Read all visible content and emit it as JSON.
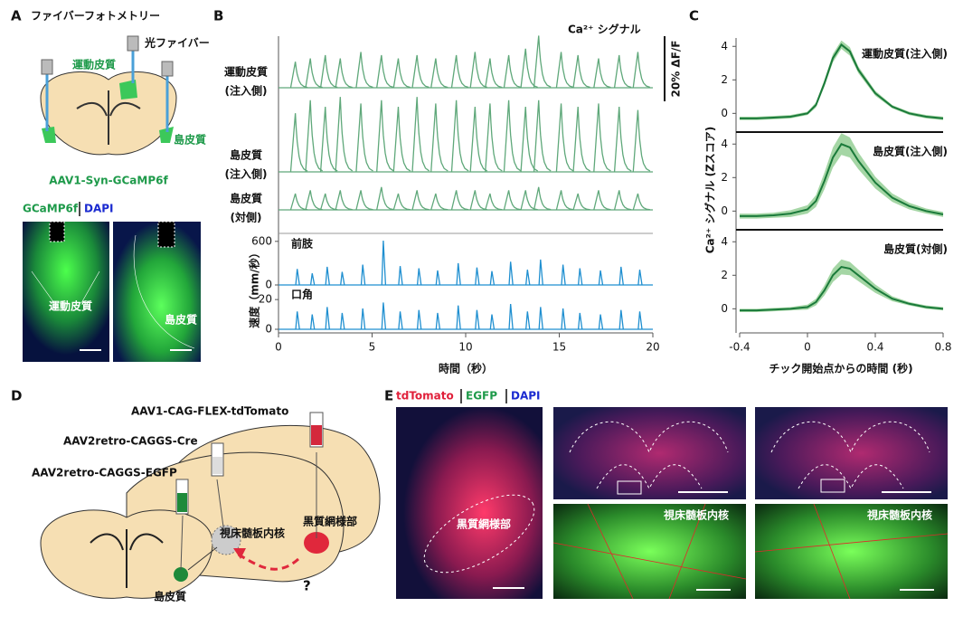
{
  "panels": {
    "A": {
      "label": "A",
      "title": "ファイバーフォトメトリー",
      "fiber": "光ファイバー",
      "motor": "運動皮質",
      "insula": "島皮質",
      "virus": "AAV1-Syn-GCaMP6f",
      "stain_green": "GCaMP6f",
      "stain_blue": "DAPI",
      "image_labels": [
        "運動皮質",
        "島皮質"
      ]
    },
    "B": {
      "label": "B"
    },
    "C": {
      "label": "C"
    },
    "D": {
      "label": "D",
      "viruses": [
        "AAV1-CAG-FLEX-tdTomato",
        "AAV2retro-CAGGS-Cre",
        "AAV2retro-CAGGS-EGFP"
      ],
      "regions": [
        "視床髄板内核",
        "黒質網様部",
        "島皮質"
      ],
      "question": "?"
    },
    "E": {
      "label": "E",
      "stains": [
        "tdTomato",
        "EGFP",
        "DAPI"
      ],
      "image_labels": [
        "黒質網様部",
        "視床髄板内核",
        "視床髄板内核"
      ]
    }
  },
  "chart_data": [
    {
      "type": "traces",
      "annotation": "Ca²⁺ シグナル",
      "scale_bar": {
        "value": 20,
        "label": "20% ΔF/F"
      },
      "xlabel": "時間（秒）",
      "xlim": [
        0,
        20
      ],
      "xticks": [
        0,
        5,
        10,
        15,
        20
      ],
      "ylabel": "速度（mm/秒）",
      "series": [
        {
          "label_lines": [
            "運動皮質",
            "(注入側)"
          ],
          "color": "#5fa87a",
          "x": [
            0.9,
            1.7,
            2.5,
            3.3,
            4.4,
            5.5,
            6.4,
            7.4,
            8.4,
            9.5,
            10.5,
            11.3,
            12.3,
            13.2,
            13.9,
            15.1,
            16.0,
            17.1,
            18.2,
            19.2
          ],
          "values": [
            8,
            9,
            10,
            9,
            11,
            10,
            9,
            10,
            9,
            10,
            11,
            9,
            10,
            12,
            16,
            11,
            10,
            9,
            10,
            11
          ]
        },
        {
          "label_lines": [
            "島皮質",
            "(注入側)"
          ],
          "color": "#5fa87a",
          "x": [
            0.9,
            1.7,
            2.5,
            3.3,
            4.4,
            5.5,
            6.4,
            7.4,
            8.4,
            9.5,
            10.5,
            11.3,
            12.3,
            13.2,
            13.9,
            15.1,
            16.0,
            17.1,
            18.2,
            19.2
          ],
          "values": [
            18,
            22,
            20,
            23,
            21,
            22,
            20,
            23,
            21,
            22,
            20,
            21,
            22,
            20,
            22,
            21,
            20,
            21,
            20,
            19
          ]
        },
        {
          "label_lines": [
            "島皮質",
            "(対側)"
          ],
          "color": "#5fa87a",
          "x": [
            0.9,
            1.7,
            2.5,
            3.3,
            4.4,
            5.5,
            6.4,
            7.4,
            8.4,
            9.5,
            10.5,
            11.3,
            12.3,
            13.2,
            13.9,
            15.1,
            16.0,
            17.1,
            18.2,
            19.2
          ],
          "values": [
            5,
            6,
            5,
            6,
            6,
            7,
            5,
            6,
            5,
            6,
            6,
            5,
            6,
            6,
            7,
            6,
            5,
            6,
            6,
            5
          ]
        }
      ],
      "speed": [
        {
          "name": "前肢",
          "color": "#1f8fd0",
          "ylim": [
            0,
            660
          ],
          "yticks": [
            0,
            600
          ],
          "x": [
            1.0,
            1.8,
            2.6,
            3.4,
            4.5,
            5.6,
            6.5,
            7.5,
            8.5,
            9.6,
            10.6,
            11.4,
            12.4,
            13.3,
            14.0,
            15.2,
            16.1,
            17.2,
            18.3,
            19.3
          ],
          "values": [
            220,
            160,
            250,
            180,
            280,
            610,
            260,
            230,
            200,
            300,
            240,
            190,
            320,
            210,
            350,
            280,
            230,
            200,
            250,
            210
          ]
        },
        {
          "name": "口角",
          "color": "#1f8fd0",
          "ylim": [
            0,
            28
          ],
          "yticks": [
            0,
            20
          ],
          "x": [
            1.0,
            1.8,
            2.6,
            3.4,
            4.5,
            5.6,
            6.5,
            7.5,
            8.5,
            9.6,
            10.6,
            11.4,
            12.4,
            13.3,
            14.0,
            15.2,
            16.1,
            17.2,
            18.3,
            19.3
          ],
          "values": [
            12,
            10,
            15,
            11,
            14,
            18,
            12,
            13,
            11,
            16,
            13,
            10,
            17,
            12,
            15,
            14,
            11,
            10,
            13,
            12
          ]
        }
      ]
    },
    {
      "type": "line",
      "ylabel": "Ca²⁺ シグナル (Zスコア)",
      "xlabel": "チック開始点からの時間 (秒)",
      "xlim": [
        -0.4,
        0.8
      ],
      "xticks": [
        -0.4,
        0,
        0.4,
        0.8
      ],
      "ylim": [
        -0.9,
        4.5
      ],
      "yticks": [
        0,
        2,
        4
      ],
      "x": [
        -0.4,
        -0.3,
        -0.2,
        -0.1,
        0,
        0.05,
        0.1,
        0.15,
        0.2,
        0.25,
        0.3,
        0.4,
        0.5,
        0.6,
        0.7,
        0.8
      ],
      "series": [
        {
          "name": "運動皮質(注入側)",
          "color": "#1a7a3a",
          "band_color": "#8fcc8f",
          "values": [
            -0.3,
            -0.3,
            -0.25,
            -0.2,
            0,
            0.5,
            1.8,
            3.3,
            4.1,
            3.7,
            2.6,
            1.2,
            0.4,
            0,
            -0.2,
            -0.3
          ],
          "errors": [
            0.1,
            0.1,
            0.1,
            0.1,
            0.1,
            0.15,
            0.2,
            0.25,
            0.25,
            0.25,
            0.2,
            0.15,
            0.1,
            0.1,
            0.1,
            0.1
          ]
        },
        {
          "name": "島皮質(注入側)",
          "color": "#1a7a3a",
          "band_color": "#8fcc8f",
          "values": [
            -0.3,
            -0.3,
            -0.25,
            -0.15,
            0.1,
            0.6,
            1.8,
            3.2,
            4.0,
            3.8,
            3.0,
            1.7,
            0.8,
            0.3,
            0,
            -0.2
          ],
          "errors": [
            0.15,
            0.15,
            0.15,
            0.2,
            0.25,
            0.35,
            0.5,
            0.6,
            0.65,
            0.6,
            0.5,
            0.35,
            0.25,
            0.2,
            0.15,
            0.15
          ]
        },
        {
          "name": "島皮質(対側)",
          "color": "#1a7a3a",
          "band_color": "#8fcc8f",
          "values": [
            -0.1,
            -0.1,
            -0.05,
            0,
            0.1,
            0.4,
            1.1,
            2.0,
            2.5,
            2.4,
            2.0,
            1.2,
            0.6,
            0.3,
            0.1,
            0
          ],
          "errors": [
            0.1,
            0.1,
            0.1,
            0.1,
            0.15,
            0.2,
            0.3,
            0.4,
            0.45,
            0.4,
            0.35,
            0.25,
            0.15,
            0.1,
            0.1,
            0.1
          ]
        }
      ]
    }
  ]
}
